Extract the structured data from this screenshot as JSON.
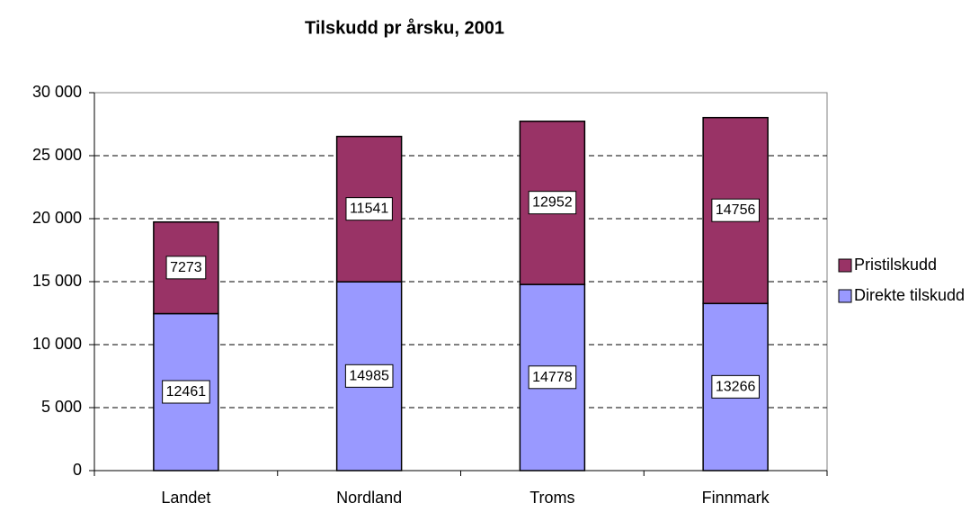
{
  "chart_data": {
    "type": "stacked-bar",
    "title": "Tilskudd pr årsku, 2001",
    "categories": [
      "Landet",
      "Nordland",
      "Troms",
      "Finnmark"
    ],
    "series": [
      {
        "name": "Direkte tilskudd",
        "color": "#9999ff",
        "values": [
          12461,
          14985,
          14778,
          13266
        ]
      },
      {
        "name": "Pristilskudd",
        "color": "#993366",
        "values": [
          7273,
          11541,
          12952,
          14756
        ]
      }
    ],
    "ylim": [
      0,
      30000
    ],
    "yticks": [
      0,
      {
        "value": 5000,
        "label": "5 000"
      },
      {
        "value": 10000,
        "label": "10 000"
      },
      {
        "value": 15000,
        "label": "15 000"
      },
      {
        "value": 20000,
        "label": "20 000"
      },
      {
        "value": 25000,
        "label": "25 000"
      },
      {
        "value": 30000,
        "label": "30 000"
      }
    ],
    "grid": true,
    "legend": "right"
  }
}
